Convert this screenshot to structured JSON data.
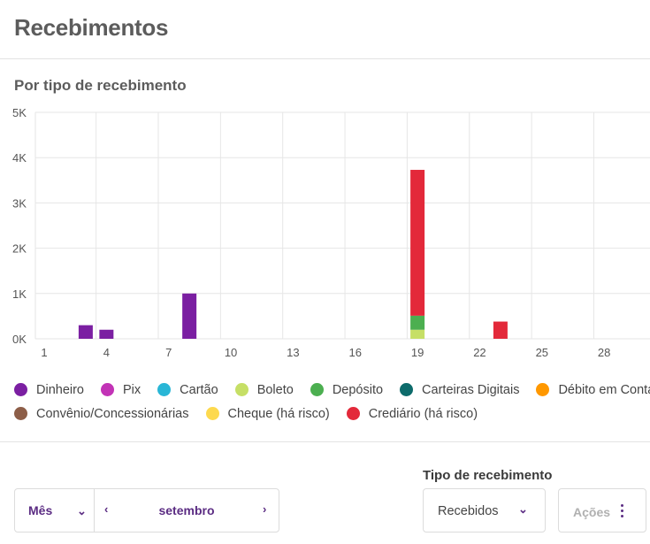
{
  "header": {
    "title": "Recebimentos"
  },
  "section": {
    "subtitle": "Por tipo de recebimento"
  },
  "chart_data": {
    "type": "bar",
    "stacked": true,
    "x": [
      1,
      2,
      3,
      4,
      5,
      6,
      7,
      8,
      9,
      10,
      11,
      12,
      13,
      14,
      15,
      16,
      17,
      18,
      19,
      20,
      21,
      22,
      23,
      24,
      25,
      26,
      27,
      28,
      29,
      30
    ],
    "x_ticks": [
      "1",
      "4",
      "7",
      "10",
      "13",
      "16",
      "19",
      "22",
      "25",
      "28"
    ],
    "y_ticks": [
      "0K",
      "1K",
      "2K",
      "3K",
      "4K",
      "5K"
    ],
    "ylim": [
      0,
      5000
    ],
    "grid": true,
    "legend_position": "bottom",
    "series": [
      {
        "name": "Dinheiro",
        "color": "#7b1fa2",
        "points": [
          [
            3,
            300
          ],
          [
            4,
            200
          ],
          [
            8,
            1000
          ]
        ]
      },
      {
        "name": "Pix",
        "color": "#c233b6",
        "points": []
      },
      {
        "name": "Cartão",
        "color": "#29b6d6",
        "points": []
      },
      {
        "name": "Boleto",
        "color": "#c6df66",
        "points": [
          [
            19,
            200
          ]
        ]
      },
      {
        "name": "Depósito",
        "color": "#4caf50",
        "points": [
          [
            19,
            310
          ]
        ]
      },
      {
        "name": "Carteiras Digitais",
        "color": "#0d6b6b",
        "points": []
      },
      {
        "name": "Débito em Conta",
        "color": "#ff9800",
        "points": []
      },
      {
        "name": "Convênio/Concessionárias",
        "color": "#8d5e48",
        "points": []
      },
      {
        "name": "Cheque (há risco)",
        "color": "#fdd94e",
        "points": []
      },
      {
        "name": "Crediário (há risco)",
        "color": "#e3293a",
        "points": [
          [
            19,
            3220
          ],
          [
            23,
            380
          ]
        ]
      }
    ]
  },
  "controls": {
    "period_unit": "Mês",
    "month": "setembro",
    "type_label": "Tipo de recebimento",
    "type_value": "Recebidos",
    "actions_label": "Ações"
  }
}
